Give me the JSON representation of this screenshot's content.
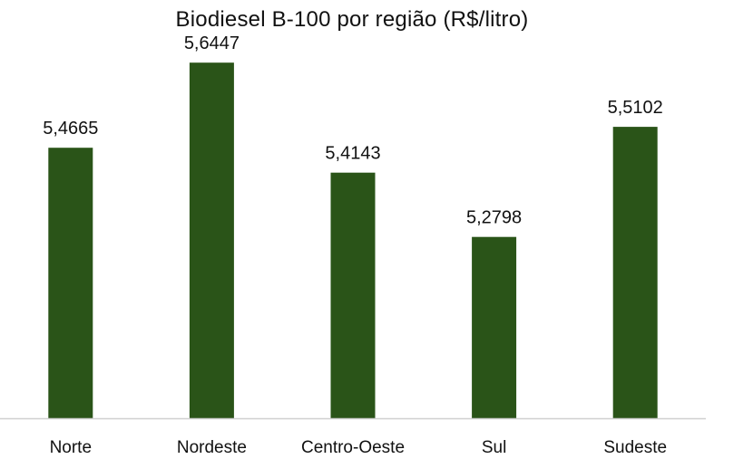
{
  "chart_data": {
    "type": "bar",
    "title": "Biodiesel B-100 por região (R$/litro)",
    "categories": [
      "Norte",
      "Nordeste",
      "Centro-Oeste",
      "Sul",
      "Sudeste"
    ],
    "values": [
      5.4665,
      5.6447,
      5.4143,
      5.2798,
      5.5102
    ],
    "data_labels": [
      "5,4665",
      "5,6447",
      "5,4143",
      "5,2798",
      "5,5102"
    ],
    "xlabel": "",
    "ylabel": "",
    "ylim": [
      4.9,
      5.7
    ],
    "grid": false,
    "legend": "none",
    "bar_color": "#2a5418",
    "axis_color": "#d0d0d0"
  }
}
